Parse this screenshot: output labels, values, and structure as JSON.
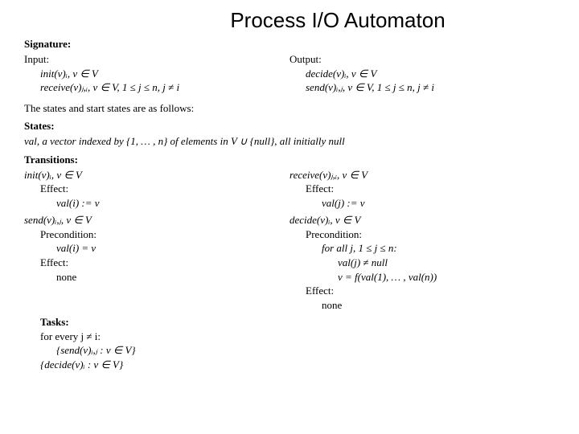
{
  "title": "Process I/O Automaton",
  "signature_label": "Signature:",
  "input_label": "Input:",
  "output_label": "Output:",
  "input_lines": [
    "init(v)ᵢ, v ∈ V",
    "receive(v)ⱼ,ᵢ, v ∈ V, 1 ≤ j ≤ n, j ≠ i"
  ],
  "output_lines": [
    "decide(v)ᵢ, v ∈ V",
    "send(v)ᵢ,ⱼ, v ∈ V, 1 ≤ j ≤ n, j ≠ i"
  ],
  "states_intro": "The states and start states are as follows:",
  "states_label": "States:",
  "states_line": "val, a vector indexed by {1, … , n} of elements in V ∪ {null}, all initially null",
  "transitions_label": "Transitions:",
  "trans_left": [
    {
      "head": "init(v)ᵢ, v ∈ V",
      "sub": [
        "Effect:"
      ],
      "body": [
        "val(i) := v"
      ]
    },
    {
      "head": "send(v)ᵢ,ⱼ, v ∈ V",
      "sub": [
        "Precondition:"
      ],
      "body": [
        "val(i) = v"
      ],
      "sub2": [
        "Effect:"
      ],
      "body2": [
        "none"
      ]
    }
  ],
  "trans_right": [
    {
      "head": "receive(v)ⱼ,ᵢ, v ∈ V",
      "sub": [
        "Effect:"
      ],
      "body": [
        "val(j) := v"
      ]
    },
    {
      "head": "decide(v)ᵢ, v ∈ V",
      "sub": [
        "Precondition:"
      ],
      "body": [
        "for all j, 1 ≤ j ≤ n:",
        "  val(j) ≠ null",
        "  v = f(val(1), … , val(n))"
      ],
      "sub2": [
        "Effect:"
      ],
      "body2": [
        "none"
      ]
    }
  ],
  "tasks_label": "Tasks:",
  "tasks_lines": [
    "for every j ≠ i:",
    "  {send(v)ᵢ,ⱼ : v ∈ V}",
    "{decide(v)ᵢ : v ∈ V}"
  ]
}
